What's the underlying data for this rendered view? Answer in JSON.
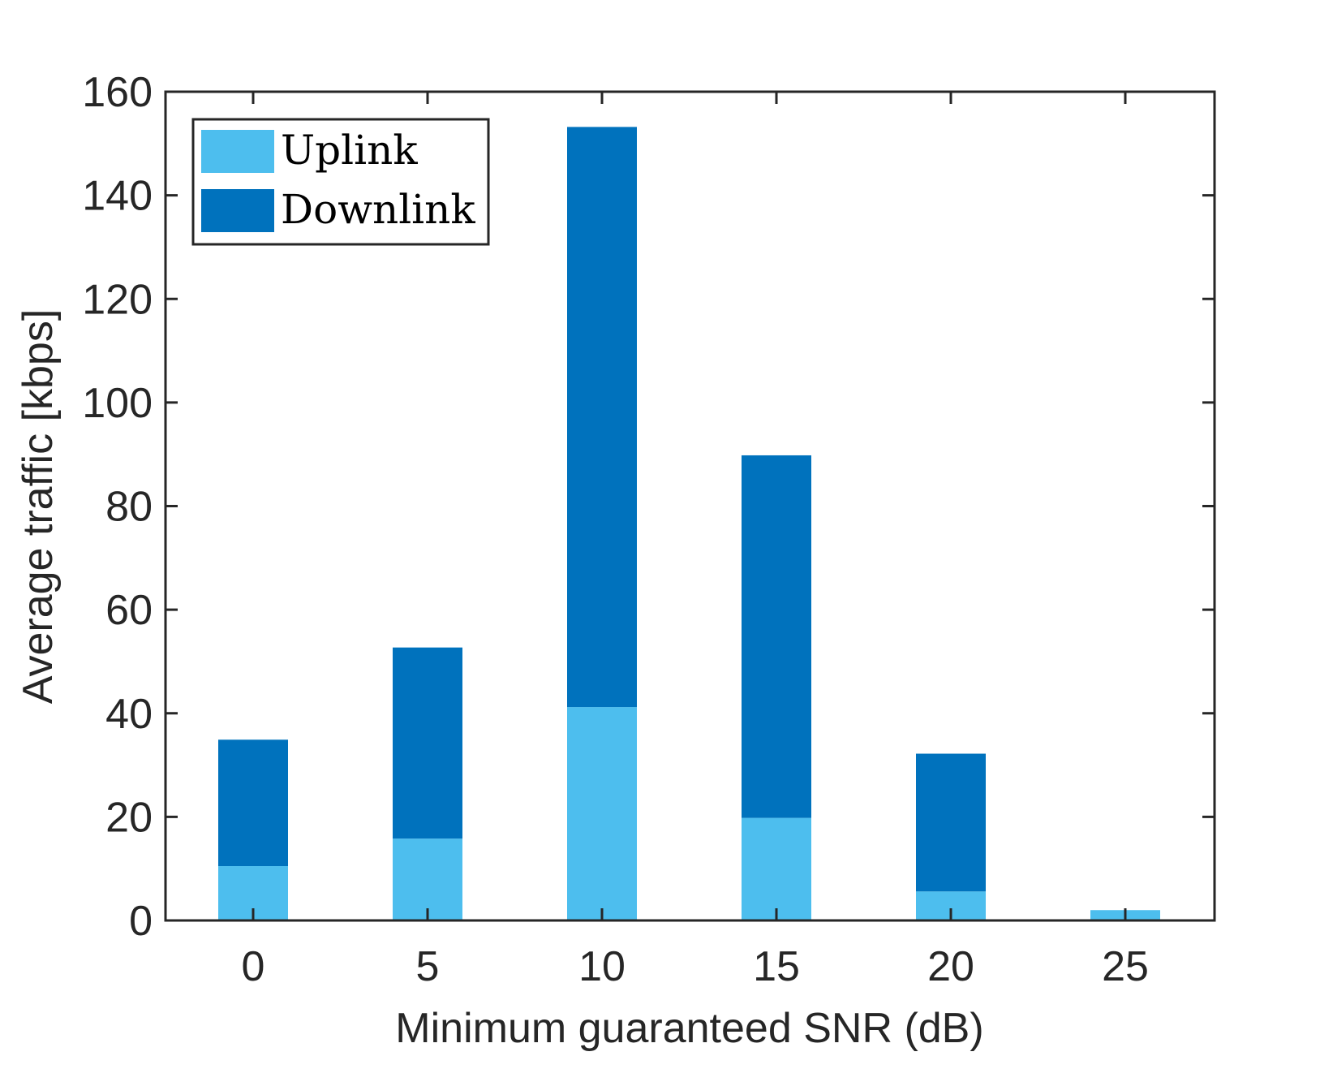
{
  "chart_data": {
    "type": "bar",
    "stacked": true,
    "categories": [
      "0",
      "5",
      "10",
      "15",
      "20",
      "25"
    ],
    "series": [
      {
        "name": "Uplink",
        "color": "#4DBEEE",
        "values": [
          10.5,
          15.8,
          41.2,
          19.8,
          5.6,
          2.0
        ]
      },
      {
        "name": "Downlink",
        "color": "#0072BD",
        "values": [
          24.4,
          36.9,
          112.0,
          70.0,
          26.6,
          0.0
        ]
      }
    ],
    "xlabel": "Minimum guaranteed SNR (dB)",
    "ylabel": "Average traffic [kbps]",
    "ylim": [
      0,
      160
    ],
    "yticks": [
      0,
      20,
      40,
      60,
      80,
      100,
      120,
      140,
      160
    ],
    "xticks": [
      "0",
      "5",
      "10",
      "15",
      "20",
      "25"
    ],
    "grid": false,
    "legend_position": "top-left",
    "axis_color": "#262626",
    "title": ""
  }
}
